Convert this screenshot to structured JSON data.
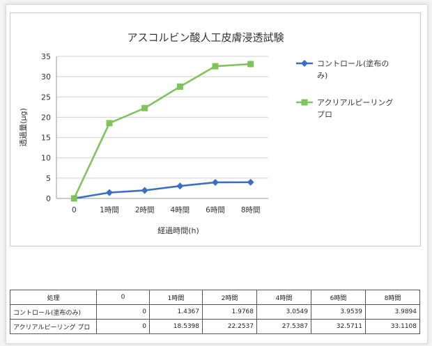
{
  "chart_data": {
    "type": "line",
    "title": "アスコルビン酸人工皮膚浸透試験",
    "xlabel": "経過時間(h)",
    "ylabel": "透過量(μg)",
    "categories": [
      "0",
      "1時間",
      "2時間",
      "4時間",
      "6時間",
      "8時間"
    ],
    "ylim": [
      0,
      35
    ],
    "yticks": [
      "0",
      "5",
      "10",
      "15",
      "20",
      "25",
      "30",
      "35"
    ],
    "grid": true,
    "legend_position": "right",
    "series": [
      {
        "name": "コントロール(塗布のみ)",
        "legend_lines": [
          "コントロール(塗布の",
          "み)"
        ],
        "values": [
          0,
          1.4367,
          1.9768,
          3.0549,
          3.9539,
          3.9894
        ],
        "color": "#3b6fc4",
        "marker": "diamond"
      },
      {
        "name": "アクリアルピーリングプロ",
        "legend_lines": [
          "アクリアルピーリング",
          "プロ"
        ],
        "values": [
          0,
          18.5398,
          22.2537,
          27.5387,
          32.5711,
          33.1108
        ],
        "color": "#7ec45a",
        "marker": "square"
      }
    ]
  },
  "table": {
    "header": [
      "処理",
      "0",
      "1時間",
      "2時間",
      "4時間",
      "6時間",
      "8時間"
    ],
    "rows": [
      {
        "label": "コントロール(塗布のみ)",
        "cells": [
          "0",
          "1.4367",
          "1.9768",
          "3.0549",
          "3.9539",
          "3.9894"
        ]
      },
      {
        "label": "アクリアルピーリング プロ",
        "cells": [
          "0",
          "18.5398",
          "22.2537",
          "27.5387",
          "32.5711",
          "33.1108"
        ]
      }
    ]
  }
}
